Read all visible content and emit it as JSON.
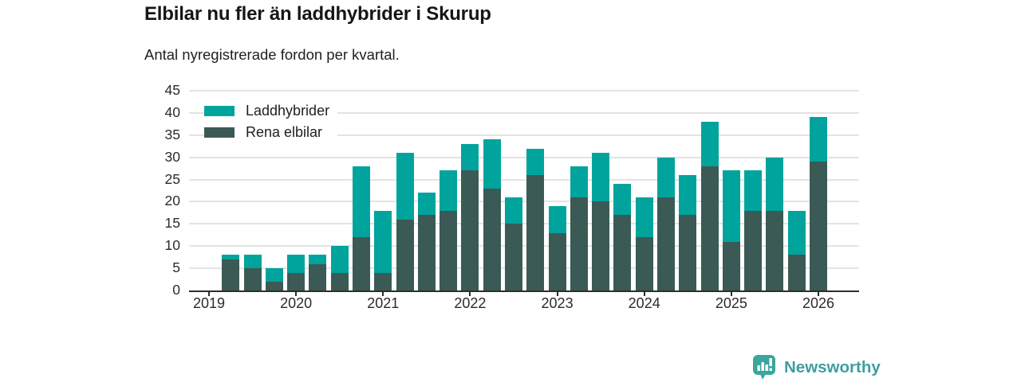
{
  "header": {
    "title": "Elbilar nu fler än laddhybrider i Skurup",
    "subtitle": "Antal nyregistrerade fordon per kvartal."
  },
  "chart_data": {
    "type": "bar",
    "stacked": true,
    "title": "Elbilar nu fler än laddhybrider i Skurup",
    "subtitle": "Antal nyregistrerade fordon per kvartal.",
    "categories": [
      "2019 Q2",
      "2019 Q3",
      "2019 Q4",
      "2020 Q1",
      "2020 Q2",
      "2020 Q3",
      "2020 Q4",
      "2021 Q1",
      "2021 Q2",
      "2021 Q3",
      "2021 Q4",
      "2022 Q1",
      "2022 Q2",
      "2022 Q3",
      "2022 Q4",
      "2023 Q1",
      "2023 Q2",
      "2023 Q3",
      "2023 Q4",
      "2024 Q1",
      "2024 Q2",
      "2024 Q3",
      "2024 Q4",
      "2025 Q1",
      "2025 Q2",
      "2025 Q3",
      "2025 Q4",
      "2026 Q1"
    ],
    "series": [
      {
        "name": "Laddhybrider",
        "color": "#00a49c",
        "values": [
          1,
          3,
          3,
          4,
          2,
          6,
          16,
          14,
          15,
          5,
          9,
          6,
          11,
          6,
          6,
          6,
          7,
          11,
          7,
          9,
          9,
          9,
          10,
          16,
          9,
          12,
          10,
          10
        ]
      },
      {
        "name": "Rena elbilar",
        "color": "#3b5a55",
        "values": [
          7,
          5,
          2,
          4,
          6,
          4,
          12,
          4,
          16,
          17,
          18,
          27,
          23,
          15,
          26,
          13,
          21,
          20,
          17,
          12,
          21,
          17,
          28,
          11,
          18,
          18,
          8,
          29
        ]
      }
    ],
    "totals": [
      8,
      8,
      5,
      8,
      8,
      10,
      28,
      18,
      31,
      22,
      27,
      33,
      34,
      21,
      32,
      19,
      28,
      31,
      24,
      21,
      30,
      26,
      38,
      27,
      27,
      30,
      18,
      39
    ],
    "ylim": [
      0,
      45
    ],
    "yticks": [
      0,
      5,
      10,
      15,
      20,
      25,
      30,
      35,
      40,
      45
    ],
    "xticks": [
      "2019",
      "2020",
      "2021",
      "2022",
      "2023",
      "2024",
      "2025",
      "2026"
    ],
    "grid": "horizontal",
    "legend_position": "top-left",
    "colors": {
      "grid": "#e3e3e3",
      "axis": "#2d2d2d",
      "text": "#2b2b2b"
    }
  },
  "branding": {
    "logo_text": "Newsworthy",
    "logo_color": "#3f9e9e",
    "icon_color": "#3aa69e",
    "icon": "bar-chart-speech-bubble-icon"
  }
}
